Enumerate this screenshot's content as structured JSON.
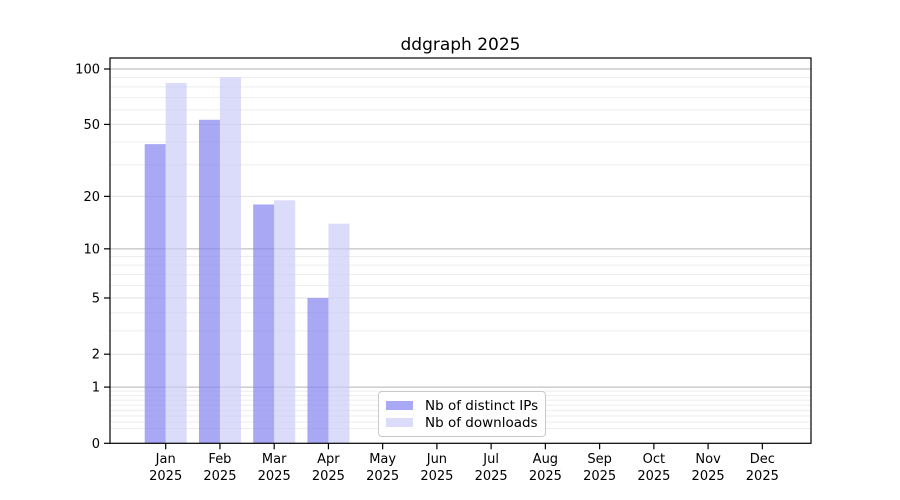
{
  "chart_data": {
    "type": "bar",
    "title": "ddgraph 2025",
    "year_label": "2025",
    "categories": [
      "Jan",
      "Feb",
      "Mar",
      "Apr",
      "May",
      "Jun",
      "Jul",
      "Aug",
      "Sep",
      "Oct",
      "Nov",
      "Dec"
    ],
    "series": [
      {
        "name": "Nb of distinct IPs",
        "color": "#a8a8f5",
        "values": [
          39,
          53,
          18,
          5,
          0,
          0,
          0,
          0,
          0,
          0,
          0,
          0
        ]
      },
      {
        "name": "Nb of downloads",
        "color": "#dbdbfa",
        "values": [
          84,
          90,
          19,
          14,
          0,
          0,
          0,
          0,
          0,
          0,
          0,
          0
        ]
      }
    ],
    "y_axis": {
      "scale": "log(1+v)",
      "tick_values": [
        0,
        1,
        2,
        5,
        10,
        20,
        50,
        100
      ],
      "major_gridlines": [
        1,
        10,
        100
      ],
      "ylim": [
        0,
        115
      ]
    },
    "x_axis": {
      "tick_label_line2": "2025"
    },
    "legend": {
      "position": "inside-bottom-center",
      "entries": [
        "Nb of distinct IPs",
        "Nb of downloads"
      ]
    },
    "colors": {
      "strong_grid": "#b2b2b2",
      "mid_grid": "#e2e2e2",
      "minor_grid": "#ededed",
      "axis": "#000000",
      "text": "#000000",
      "background": "#ffffff"
    }
  }
}
